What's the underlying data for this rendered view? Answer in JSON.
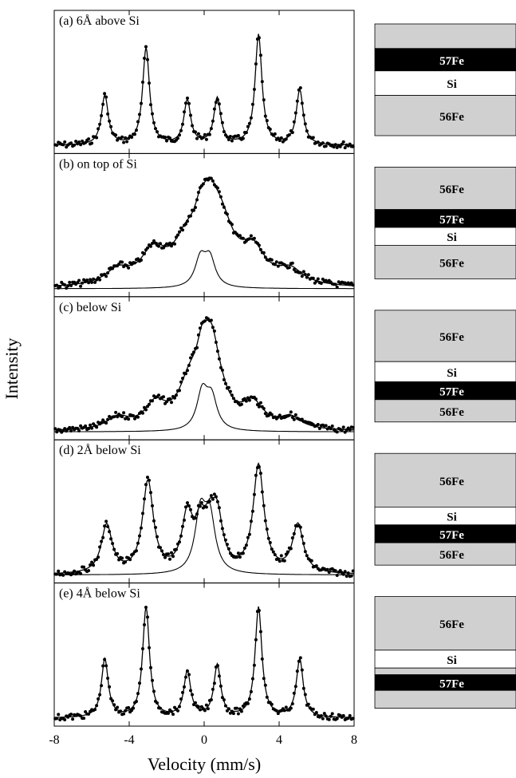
{
  "chart_data": {
    "type": "scatter",
    "xlabel": "Velocity (mm/s)",
    "ylabel": "Intensity",
    "xlim": [
      -8,
      8
    ],
    "x_ticks": [
      "-8",
      "-4",
      "0",
      "4",
      "8"
    ],
    "panels": [
      {
        "id": "a",
        "label": "(a) 6Å above Si",
        "components": [
          {
            "role": "fit",
            "sextet": {
              "center": 0.0,
              "positions": [
                -5.3,
                -3.1,
                -0.9,
                0.7,
                2.9,
                5.1
              ],
              "heights": [
                0.45,
                0.88,
                0.4,
                0.42,
                1.0,
                0.5
              ],
              "width": 0.22
            }
          }
        ],
        "layers": [
          {
            "material": "",
            "color": "#d0d0d0",
            "frac": 0.22
          },
          {
            "material": "57Fe",
            "color": "#000000",
            "frac": 0.2
          },
          {
            "material": "Si",
            "color": "#ffffff",
            "frac": 0.22
          },
          {
            "material": "56Fe",
            "color": "#d0d0d0",
            "frac": 0.36
          }
        ]
      },
      {
        "id": "b",
        "label": "(b) on top of Si",
        "components": [
          {
            "role": "fit",
            "broad": {
              "positions": [
                -4.6,
                -2.7,
                -1.0,
                0.0,
                0.6,
                1.0,
                2.6,
                4.6
              ],
              "heights": [
                0.25,
                0.55,
                0.55,
                0.55,
                0.55,
                0.55,
                0.55,
                0.25
              ],
              "width": 0.8
            }
          },
          {
            "role": "singlet",
            "doublet": {
              "positions": [
                -0.2,
                0.3
              ],
              "heights": [
                0.55,
                0.55
              ],
              "width": 0.35
            }
          }
        ],
        "layers": [
          {
            "material": "56Fe",
            "color": "#d0d0d0",
            "frac": 0.38
          },
          {
            "material": "57Fe",
            "color": "#000000",
            "frac": 0.16
          },
          {
            "material": "Si",
            "color": "#ffffff",
            "frac": 0.16
          },
          {
            "material": "56Fe",
            "color": "#d0d0d0",
            "frac": 0.3
          }
        ]
      },
      {
        "id": "c",
        "label": "(c) below Si",
        "components": [
          {
            "role": "fit",
            "broad": {
              "positions": [
                -4.6,
                -2.6,
                -0.8,
                0.1,
                0.6,
                2.6,
                4.6
              ],
              "heights": [
                0.15,
                0.3,
                0.45,
                0.55,
                0.45,
                0.3,
                0.15
              ],
              "width": 0.7
            }
          },
          {
            "role": "singlet",
            "doublet": {
              "positions": [
                -0.1,
                0.4
              ],
              "heights": [
                0.55,
                0.45
              ],
              "width": 0.35
            }
          }
        ],
        "layers": [
          {
            "material": "56Fe",
            "color": "#d0d0d0",
            "frac": 0.46
          },
          {
            "material": "Si",
            "color": "#ffffff",
            "frac": 0.18
          },
          {
            "material": "57Fe",
            "color": "#000000",
            "frac": 0.16
          },
          {
            "material": "56Fe",
            "color": "#d0d0d0",
            "frac": 0.2
          }
        ]
      },
      {
        "id": "d",
        "label": "(d) 2Å below Si",
        "components": [
          {
            "role": "fit",
            "sextet": {
              "center": 0.0,
              "positions": [
                -5.2,
                -3.0,
                -0.9,
                0.7,
                2.9,
                5.0
              ],
              "heights": [
                0.45,
                0.85,
                0.5,
                0.45,
                1.0,
                0.45
              ],
              "width": 0.35
            }
          },
          {
            "role": "singlet",
            "doublet": {
              "positions": [
                -0.2,
                0.3
              ],
              "heights": [
                0.6,
                0.55
              ],
              "width": 0.35
            }
          }
        ],
        "layers": [
          {
            "material": "56Fe",
            "color": "#d0d0d0",
            "frac": 0.48
          },
          {
            "material": "Si",
            "color": "#ffffff",
            "frac": 0.16
          },
          {
            "material": "57Fe",
            "color": "#000000",
            "frac": 0.16
          },
          {
            "material": "56Fe",
            "color": "#d0d0d0",
            "frac": 0.2
          }
        ]
      },
      {
        "id": "e",
        "label": "(e) 4Å below Si",
        "components": [
          {
            "role": "fit",
            "sextet": {
              "center": 0.0,
              "positions": [
                -5.3,
                -3.1,
                -0.9,
                0.7,
                2.9,
                5.1
              ],
              "heights": [
                0.45,
                0.85,
                0.35,
                0.4,
                0.85,
                0.45
              ],
              "width": 0.22
            }
          }
        ],
        "layers": [
          {
            "material": "56Fe",
            "color": "#d0d0d0",
            "frac": 0.48
          },
          {
            "material": "Si",
            "color": "#ffffff",
            "frac": 0.16
          },
          {
            "material": "",
            "color": "#d0d0d0",
            "frac": 0.06
          },
          {
            "material": "57Fe",
            "color": "#000000",
            "frac": 0.14
          },
          {
            "material": "",
            "color": "#d0d0d0",
            "frac": 0.16
          }
        ]
      }
    ]
  }
}
